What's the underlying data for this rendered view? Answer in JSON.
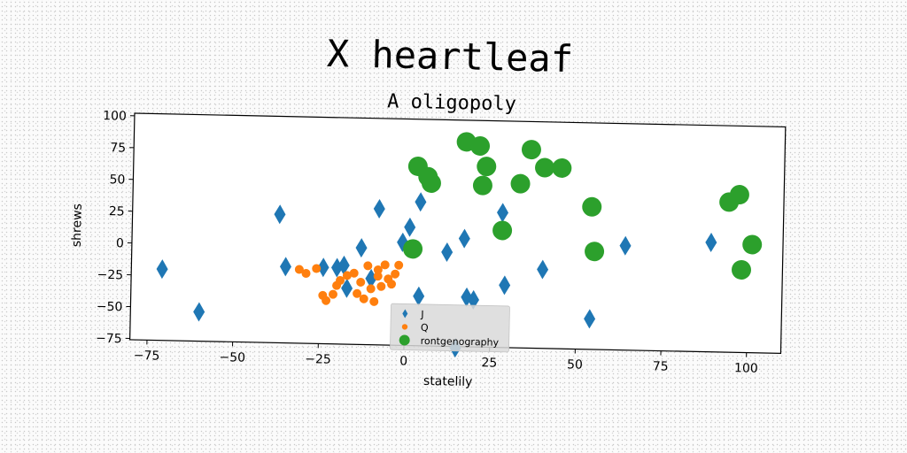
{
  "chart_data": {
    "type": "scatter",
    "title": "X heartleaf",
    "subtitle": "A oligopoly",
    "xlabel": "statelily",
    "ylabel": "shrews",
    "xlim": [
      -80,
      110
    ],
    "ylim": [
      -76,
      102
    ],
    "xticks": [
      -75,
      -50,
      -25,
      0,
      25,
      50,
      75,
      100
    ],
    "yticks": [
      -75,
      -50,
      -25,
      0,
      25,
      50,
      75,
      100
    ],
    "grid": false,
    "legend_position": "bottom-center",
    "series": [
      {
        "name": "J",
        "color": "#1f77b4",
        "marker": "diamond",
        "points": [
          [
            -71,
            -20
          ],
          [
            -60,
            -53
          ],
          [
            -37,
            25
          ],
          [
            -35,
            -16
          ],
          [
            -24,
            -16
          ],
          [
            -20,
            -16
          ],
          [
            -18,
            -14
          ],
          [
            -17,
            -32
          ],
          [
            -13,
            0
          ],
          [
            -10,
            -24
          ],
          [
            -8,
            31
          ],
          [
            -1,
            5
          ],
          [
            1,
            17
          ],
          [
            4,
            -37
          ],
          [
            4,
            37
          ],
          [
            12,
            -2
          ],
          [
            17,
            9
          ],
          [
            18,
            -37
          ],
          [
            20,
            -39
          ],
          [
            28,
            30
          ],
          [
            29,
            -27
          ],
          [
            40,
            -14
          ],
          [
            54,
            -52
          ],
          [
            64,
            6
          ],
          [
            89,
            10
          ],
          [
            15,
            -77
          ]
        ]
      },
      {
        "name": "Q",
        "color": "#ff7f0e",
        "marker": "circle",
        "points": [
          [
            -31,
            -18
          ],
          [
            -29,
            -21
          ],
          [
            -26,
            -17
          ],
          [
            -24,
            -38
          ],
          [
            -23,
            -42
          ],
          [
            -21,
            -37
          ],
          [
            -20,
            -30
          ],
          [
            -19,
            -26
          ],
          [
            -17,
            -22
          ],
          [
            -15,
            -20
          ],
          [
            -14,
            -36
          ],
          [
            -12,
            -40
          ],
          [
            -11,
            -14
          ],
          [
            -10,
            -32
          ],
          [
            -9,
            -42
          ],
          [
            -8,
            -17
          ],
          [
            -7,
            -30
          ],
          [
            -6,
            -13
          ],
          [
            -5,
            -24
          ],
          [
            -4,
            -28
          ],
          [
            -3,
            -20
          ],
          [
            -2,
            -13
          ],
          [
            -13,
            -27
          ],
          [
            -8,
            -22
          ]
        ]
      },
      {
        "name": "rontgenography",
        "color": "#2ca02c",
        "marker": "circle",
        "points": [
          [
            3,
            65
          ],
          [
            6,
            57
          ],
          [
            7,
            52
          ],
          [
            2,
            0
          ],
          [
            17,
            85
          ],
          [
            21,
            82
          ],
          [
            23,
            66
          ],
          [
            22,
            51
          ],
          [
            28,
            16
          ],
          [
            33,
            53
          ],
          [
            36,
            80
          ],
          [
            40,
            66
          ],
          [
            45,
            66
          ],
          [
            54,
            36
          ],
          [
            55,
            1
          ],
          [
            94,
            42
          ],
          [
            97,
            48
          ],
          [
            98,
            -11
          ],
          [
            101,
            9
          ]
        ]
      }
    ]
  }
}
